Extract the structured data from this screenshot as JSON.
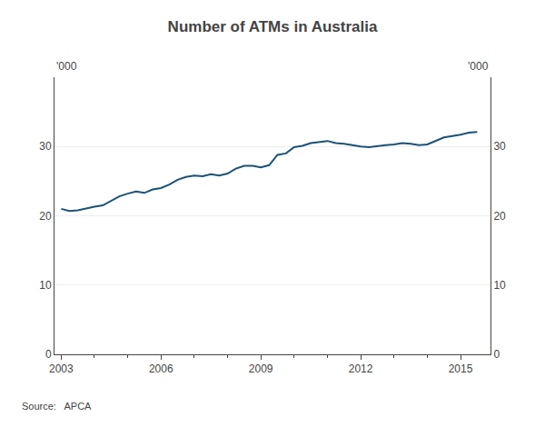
{
  "chart_data": {
    "type": "line",
    "title": "Number of ATMs in Australia",
    "ylabel": "'000",
    "y2label": "'000",
    "source": "Source:   APCA",
    "color": "#1a5276",
    "grid": true,
    "legend": false,
    "x": [
      2003.0,
      2003.25,
      2003.5,
      2003.75,
      2004.0,
      2004.25,
      2004.5,
      2004.75,
      2005.0,
      2005.25,
      2005.5,
      2005.75,
      2006.0,
      2006.25,
      2006.5,
      2006.75,
      2007.0,
      2007.25,
      2007.5,
      2007.75,
      2008.0,
      2008.25,
      2008.5,
      2008.75,
      2009.0,
      2009.25,
      2009.5,
      2009.75,
      2010.0,
      2010.25,
      2010.5,
      2010.75,
      2011.0,
      2011.25,
      2011.5,
      2011.75,
      2012.0,
      2012.25,
      2012.5,
      2012.75,
      2013.0,
      2013.25,
      2013.5,
      2013.75,
      2014.0,
      2014.25,
      2014.5,
      2014.75,
      2015.0,
      2015.25,
      2015.5
    ],
    "values": [
      21.0,
      20.7,
      20.8,
      21.1,
      21.3,
      21.5,
      22.2,
      22.8,
      23.2,
      23.5,
      23.3,
      23.8,
      24.0,
      24.5,
      25.2,
      25.6,
      25.8,
      25.7,
      26.0,
      25.8,
      26.1,
      26.8,
      27.2,
      27.2,
      27.0,
      27.3,
      28.8,
      29.0,
      29.9,
      30.1,
      30.5,
      30.6,
      30.8,
      30.5,
      30.4,
      30.2,
      30.0,
      29.9,
      30.1,
      30.2,
      30.3,
      30.5,
      30.4,
      30.2,
      30.3,
      30.8,
      31.3,
      31.5,
      31.7,
      32.0,
      32.1
    ],
    "xlim": [
      2002.8,
      2015.9
    ],
    "xticks": [
      2003,
      2006,
      2009,
      2012,
      2015
    ],
    "ylim": [
      0,
      40
    ],
    "yticks": [
      0,
      10,
      20,
      30
    ],
    "y2lim": [
      0,
      40
    ],
    "y2ticks": [
      0,
      10,
      20,
      30
    ]
  }
}
